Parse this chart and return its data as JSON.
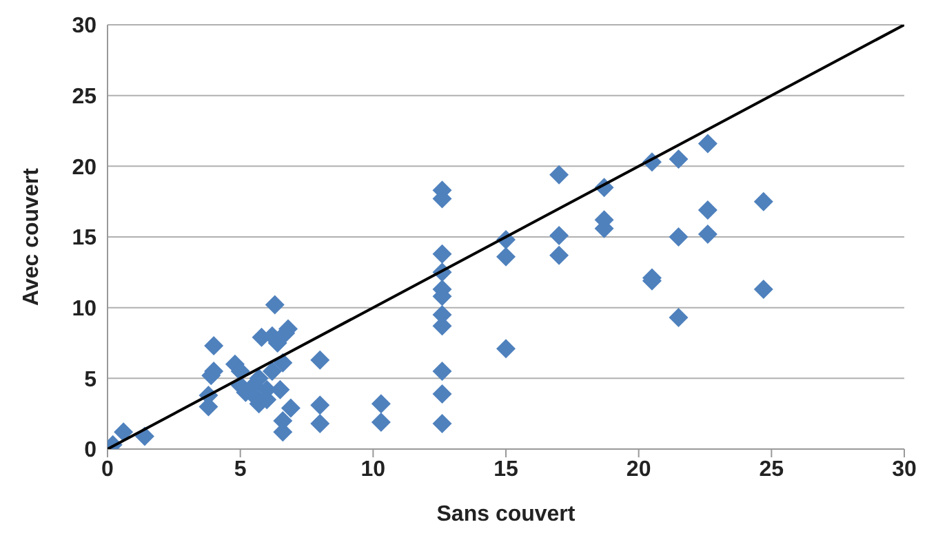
{
  "chart_data": {
    "type": "scatter",
    "xlabel": "Sans couvert",
    "ylabel": "Avec couvert",
    "xlim": [
      0,
      30
    ],
    "xticks": [
      0,
      5,
      10,
      15,
      20,
      25,
      30
    ],
    "ylim": [
      0,
      30
    ],
    "yticks": [
      0,
      5,
      10,
      15,
      20,
      25,
      30
    ],
    "grid": "y",
    "series": [
      {
        "type": "scatter",
        "color": "#4f81bd",
        "marker": "diamond",
        "x": [
          0.2,
          0.6,
          1.4,
          3.8,
          3.8,
          3.9,
          4.0,
          4.0,
          4.8,
          5.0,
          5.0,
          5.2,
          5.5,
          5.5,
          5.7,
          5.7,
          5.8,
          6.0,
          6.0,
          6.2,
          6.3,
          6.4,
          6.5,
          6.6,
          6.6,
          6.6,
          6.7,
          6.8,
          6.9,
          6.2,
          8.0,
          8.0,
          8.0,
          10.3,
          10.3,
          12.6,
          12.6,
          12.6,
          12.6,
          12.6,
          12.6,
          12.6,
          12.6,
          12.6,
          12.6,
          12.6,
          15.0,
          15.0,
          15.0,
          17.0,
          17.0,
          17.0,
          18.7,
          18.7,
          18.7,
          20.5,
          20.5,
          20.5,
          21.5,
          21.5,
          21.5,
          22.6,
          22.6,
          22.6,
          24.7,
          24.7
        ],
        "values": [
          0.3,
          1.2,
          0.9,
          3.0,
          3.8,
          5.2,
          5.5,
          7.3,
          6.0,
          5.5,
          4.5,
          4.0,
          3.8,
          4.5,
          5.0,
          3.2,
          7.9,
          3.5,
          4.2,
          8.0,
          10.2,
          7.5,
          4.2,
          6.1,
          2.0,
          1.2,
          8.2,
          8.5,
          2.9,
          5.5,
          6.3,
          3.1,
          1.8,
          3.2,
          1.9,
          18.3,
          17.7,
          13.8,
          12.5,
          11.3,
          10.8,
          9.5,
          8.7,
          5.5,
          3.9,
          1.8,
          14.8,
          13.6,
          7.1,
          19.4,
          15.1,
          13.7,
          18.5,
          16.2,
          15.6,
          20.3,
          12.1,
          11.9,
          20.5,
          15.0,
          9.3,
          21.6,
          16.9,
          15.2,
          17.5,
          11.3
        ]
      },
      {
        "type": "line",
        "color": "#000000",
        "marker": "none",
        "x": [
          0,
          30
        ],
        "values": [
          0,
          30
        ]
      }
    ]
  }
}
